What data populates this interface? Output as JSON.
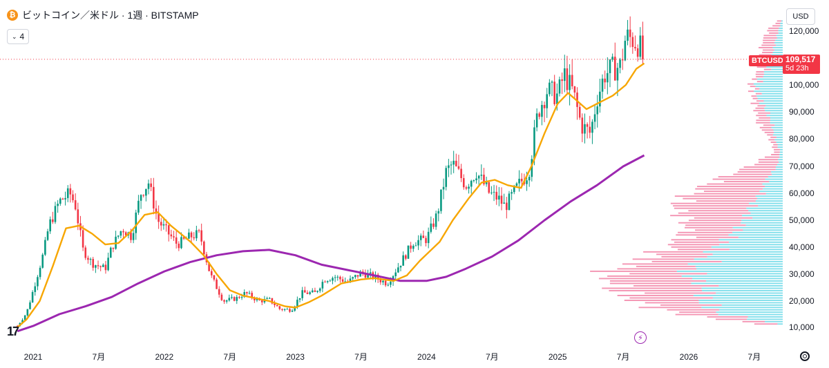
{
  "legend": {
    "icon": "bitcoin-icon",
    "title": "ビットコイン／米ドル · 1週 · BITSTAMP"
  },
  "indicators_button": {
    "label": "4",
    "icon": "chevron-down-icon"
  },
  "currency_button": {
    "label": "USD"
  },
  "last_price": {
    "symbol": "BTCUSD",
    "value": "109,517",
    "countdown": "5d 23h",
    "value_number": 109517
  },
  "colors": {
    "up": "#089981",
    "down": "#f23645",
    "ma_short": "#f7a600",
    "ma_long": "#9c27b0",
    "vp_up": "#58d4e4",
    "vp_down": "#f17ba0"
  },
  "chart_data": {
    "type": "candlestick",
    "title": "ビットコイン／米ドル · 1週 · BITSTAMP",
    "y_axis": {
      "ticks": [
        10000,
        20000,
        30000,
        40000,
        50000,
        60000,
        70000,
        80000,
        90000,
        100000,
        110000,
        120000
      ],
      "tick_labels": [
        "10,000",
        "20,000",
        "30,000",
        "40,000",
        "50,000",
        "60,000",
        "70,000",
        "80,000",
        "90,000",
        "100,000",
        "",
        "120,000"
      ],
      "range": [
        8000,
        125000
      ]
    },
    "x_axis": {
      "labels": [
        {
          "t": 2021.0,
          "label": "2021"
        },
        {
          "t": 2021.5,
          "label": "7月"
        },
        {
          "t": 2022.0,
          "label": "2022"
        },
        {
          "t": 2022.5,
          "label": "7月"
        },
        {
          "t": 2023.0,
          "label": "2023"
        },
        {
          "t": 2023.5,
          "label": "7月"
        },
        {
          "t": 2024.0,
          "label": "2024"
        },
        {
          "t": 2024.5,
          "label": "7月"
        },
        {
          "t": 2025.0,
          "label": "2025"
        },
        {
          "t": 2025.5,
          "label": "7月"
        },
        {
          "t": 2026.0,
          "label": "2026"
        },
        {
          "t": 2026.5,
          "label": "7月"
        }
      ],
      "range": [
        2020.87,
        2026.8
      ]
    },
    "price_anchors": [
      [
        2020.88,
        10500
      ],
      [
        2020.95,
        15500
      ],
      [
        2021.0,
        24000
      ],
      [
        2021.08,
        38000
      ],
      [
        2021.12,
        48000
      ],
      [
        2021.2,
        57000
      ],
      [
        2021.28,
        60000
      ],
      [
        2021.32,
        56000
      ],
      [
        2021.38,
        39000
      ],
      [
        2021.45,
        34000
      ],
      [
        2021.55,
        32000
      ],
      [
        2021.6,
        40000
      ],
      [
        2021.68,
        47000
      ],
      [
        2021.75,
        44000
      ],
      [
        2021.82,
        60000
      ],
      [
        2021.88,
        64000
      ],
      [
        2021.95,
        50000
      ],
      [
        2022.0,
        47000
      ],
      [
        2022.1,
        41000
      ],
      [
        2022.2,
        44000
      ],
      [
        2022.27,
        45000
      ],
      [
        2022.35,
        30000
      ],
      [
        2022.45,
        20000
      ],
      [
        2022.55,
        21000
      ],
      [
        2022.62,
        23000
      ],
      [
        2022.72,
        20000
      ],
      [
        2022.8,
        20500
      ],
      [
        2022.88,
        17000
      ],
      [
        2022.97,
        16600
      ],
      [
        2023.05,
        23000
      ],
      [
        2023.15,
        23000
      ],
      [
        2023.22,
        28000
      ],
      [
        2023.3,
        29000
      ],
      [
        2023.4,
        27000
      ],
      [
        2023.5,
        30500
      ],
      [
        2023.6,
        29000
      ],
      [
        2023.7,
        26500
      ],
      [
        2023.8,
        34000
      ],
      [
        2023.9,
        42000
      ],
      [
        2024.0,
        43000
      ],
      [
        2024.08,
        52000
      ],
      [
        2024.15,
        68000
      ],
      [
        2024.2,
        71000
      ],
      [
        2024.3,
        63000
      ],
      [
        2024.38,
        68000
      ],
      [
        2024.48,
        60000
      ],
      [
        2024.55,
        58000
      ],
      [
        2024.6,
        55000
      ],
      [
        2024.7,
        63000
      ],
      [
        2024.78,
        68000
      ],
      [
        2024.85,
        90000
      ],
      [
        2024.92,
        98000
      ],
      [
        2025.0,
        96000
      ],
      [
        2025.05,
        104000
      ],
      [
        2025.12,
        97000
      ],
      [
        2025.18,
        85000
      ],
      [
        2025.25,
        82000
      ],
      [
        2025.3,
        95000
      ],
      [
        2025.36,
        104000
      ],
      [
        2025.42,
        106000
      ],
      [
        2025.48,
        107000
      ],
      [
        2025.52,
        118000
      ],
      [
        2025.57,
        117000
      ],
      [
        2025.62,
        115000
      ],
      [
        2025.66,
        109517
      ]
    ],
    "ma_short": [
      [
        2020.88,
        10000
      ],
      [
        2020.95,
        13000
      ],
      [
        2021.05,
        20000
      ],
      [
        2021.15,
        33000
      ],
      [
        2021.25,
        47000
      ],
      [
        2021.35,
        48000
      ],
      [
        2021.45,
        45000
      ],
      [
        2021.55,
        41000
      ],
      [
        2021.65,
        41500
      ],
      [
        2021.75,
        46000
      ],
      [
        2021.85,
        52000
      ],
      [
        2021.95,
        53000
      ],
      [
        2022.05,
        48000
      ],
      [
        2022.2,
        42000
      ],
      [
        2022.3,
        37000
      ],
      [
        2022.4,
        30000
      ],
      [
        2022.5,
        24000
      ],
      [
        2022.6,
        22000
      ],
      [
        2022.7,
        21000
      ],
      [
        2022.8,
        20000
      ],
      [
        2022.92,
        18000
      ],
      [
        2023.0,
        17500
      ],
      [
        2023.1,
        19500
      ],
      [
        2023.2,
        22000
      ],
      [
        2023.35,
        26500
      ],
      [
        2023.5,
        28000
      ],
      [
        2023.6,
        28500
      ],
      [
        2023.75,
        27500
      ],
      [
        2023.85,
        29500
      ],
      [
        2023.95,
        35000
      ],
      [
        2024.1,
        42000
      ],
      [
        2024.2,
        50000
      ],
      [
        2024.32,
        58000
      ],
      [
        2024.42,
        64000
      ],
      [
        2024.52,
        65000
      ],
      [
        2024.62,
        63000
      ],
      [
        2024.72,
        62000
      ],
      [
        2024.8,
        70000
      ],
      [
        2024.9,
        82000
      ],
      [
        2025.0,
        93000
      ],
      [
        2025.08,
        97000
      ],
      [
        2025.15,
        94000
      ],
      [
        2025.22,
        91000
      ],
      [
        2025.32,
        93500
      ],
      [
        2025.42,
        96000
      ],
      [
        2025.52,
        100000
      ],
      [
        2025.6,
        106000
      ],
      [
        2025.66,
        108000
      ]
    ],
    "ma_long": [
      [
        2020.88,
        8500
      ],
      [
        2021.0,
        10500
      ],
      [
        2021.2,
        15000
      ],
      [
        2021.4,
        18000
      ],
      [
        2021.6,
        21500
      ],
      [
        2021.8,
        26500
      ],
      [
        2022.0,
        31000
      ],
      [
        2022.2,
        34500
      ],
      [
        2022.4,
        37000
      ],
      [
        2022.6,
        38500
      ],
      [
        2022.8,
        39000
      ],
      [
        2023.0,
        37000
      ],
      [
        2023.2,
        33500
      ],
      [
        2023.4,
        31500
      ],
      [
        2023.6,
        29500
      ],
      [
        2023.8,
        27500
      ],
      [
        2024.0,
        27500
      ],
      [
        2024.15,
        29000
      ],
      [
        2024.3,
        32000
      ],
      [
        2024.5,
        36500
      ],
      [
        2024.7,
        42500
      ],
      [
        2024.9,
        50000
      ],
      [
        2025.1,
        57000
      ],
      [
        2025.3,
        63000
      ],
      [
        2025.5,
        70000
      ],
      [
        2025.66,
        74000
      ]
    ],
    "volume_profile": {
      "range": [
        11000,
        124000
      ],
      "up_anchors": [
        [
          11000,
          10
        ],
        [
          15000,
          120
        ],
        [
          20000,
          150
        ],
        [
          25000,
          140
        ],
        [
          30000,
          180
        ],
        [
          35000,
          150
        ],
        [
          40000,
          120
        ],
        [
          45000,
          90
        ],
        [
          50000,
          70
        ],
        [
          55000,
          60
        ],
        [
          60000,
          40
        ],
        [
          65000,
          30
        ],
        [
          70000,
          10
        ],
        [
          75000,
          5
        ],
        [
          80000,
          15
        ],
        [
          85000,
          20
        ],
        [
          90000,
          30
        ],
        [
          95000,
          45
        ],
        [
          100000,
          50
        ],
        [
          105000,
          30
        ],
        [
          110000,
          20
        ],
        [
          115000,
          15
        ],
        [
          120000,
          8
        ],
        [
          124000,
          2
        ]
      ],
      "down_anchors": [
        [
          11000,
          40
        ],
        [
          15000,
          80
        ],
        [
          20000,
          130
        ],
        [
          25000,
          170
        ],
        [
          30000,
          150
        ],
        [
          35000,
          110
        ],
        [
          40000,
          90
        ],
        [
          45000,
          90
        ],
        [
          50000,
          110
        ],
        [
          55000,
          140
        ],
        [
          60000,
          130
        ],
        [
          65000,
          90
        ],
        [
          70000,
          50
        ],
        [
          75000,
          10
        ],
        [
          80000,
          10
        ],
        [
          85000,
          25
        ],
        [
          90000,
          20
        ],
        [
          95000,
          10
        ],
        [
          100000,
          10
        ],
        [
          105000,
          15
        ],
        [
          110000,
          20
        ],
        [
          115000,
          25
        ],
        [
          120000,
          20
        ],
        [
          124000,
          6
        ]
      ],
      "scale_max": 340
    },
    "grid": false,
    "legend_position": "top-left"
  }
}
